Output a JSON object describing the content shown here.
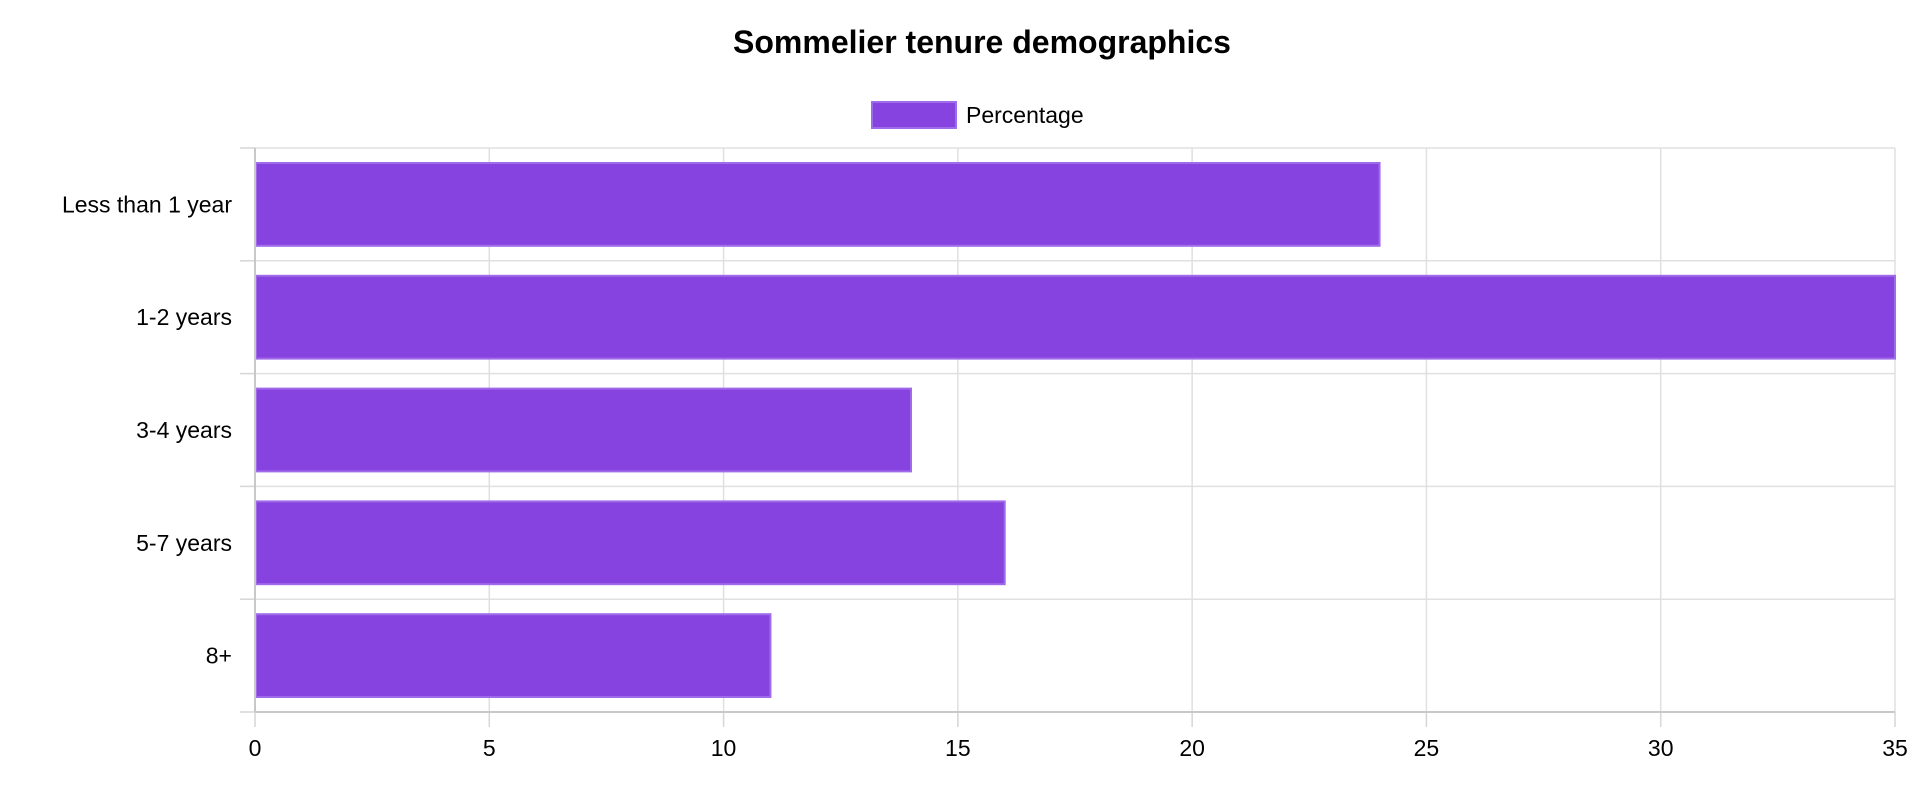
{
  "chart_data": {
    "type": "bar",
    "orientation": "horizontal",
    "title": "Sommelier tenure demographics",
    "xlabel": "",
    "ylabel": "",
    "categories": [
      "Less than 1 year",
      "1-2 years",
      "3-4 years",
      "5-7 years",
      "8+"
    ],
    "series": [
      {
        "name": "Percentage",
        "values": [
          24,
          35,
          14,
          16,
          11
        ],
        "color": "#8743df",
        "border_color": "#a06bea"
      }
    ],
    "xlim": [
      0,
      35
    ],
    "x_ticks": [
      0,
      5,
      10,
      15,
      20,
      25,
      30,
      35
    ],
    "grid": true,
    "legend_position": "top-center"
  }
}
